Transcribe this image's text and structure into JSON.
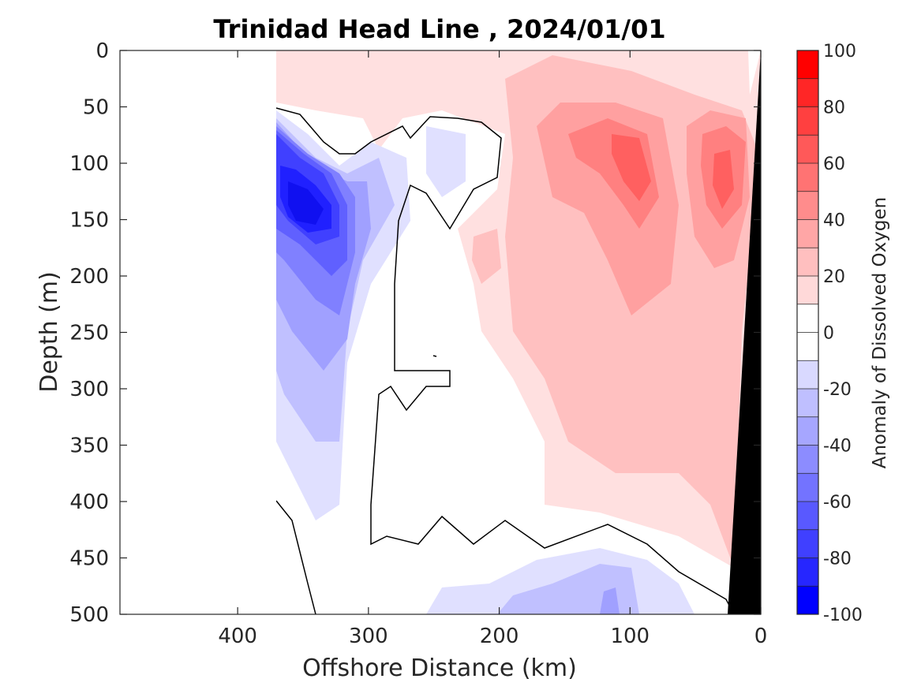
{
  "chart_data": {
    "type": "heatmap",
    "title": "Trinidad Head Line , 2024/01/01",
    "xlabel": "Offshore Distance (km)",
    "ylabel": "Depth (m)",
    "xlim": [
      490,
      0
    ],
    "ylim": [
      0,
      500
    ],
    "x_reversed": true,
    "y_reversed": true,
    "x_ticks": [
      400,
      300,
      200,
      100,
      0
    ],
    "y_ticks": [
      0,
      50,
      100,
      150,
      200,
      250,
      300,
      350,
      400,
      450,
      500
    ],
    "colorbar": {
      "label": "Anomaly of Dissolved Oxygen",
      "range": [
        -100,
        100
      ],
      "ticks": [
        -100,
        -80,
        -60,
        -40,
        -20,
        0,
        20,
        40,
        60,
        80,
        100
      ],
      "levels": [
        -100,
        -90,
        -80,
        -70,
        -60,
        -50,
        -40,
        -30,
        -20,
        -10,
        0,
        10,
        20,
        30,
        40,
        50,
        60,
        70,
        80,
        90,
        100
      ],
      "colormap": "blue-white-red"
    },
    "data_extent_km": [
      370,
      0
    ],
    "zero_contour": "black line",
    "bathymetry_fill": "#000000",
    "field_summary": [
      {
        "region": "offshore 320-370 km, 100-200 m",
        "anomaly": -90
      },
      {
        "region": "offshore 300-370 km, 200-350 m",
        "anomaly": -40
      },
      {
        "region": "nearshore 80-130 km, 100-150 m",
        "anomaly": 55
      },
      {
        "region": "nearshore 20-50 km, 100-150 m",
        "anomaly": 60
      },
      {
        "region": "nearshore 0-150 km, 150-400 m",
        "anomaly": 20
      },
      {
        "region": "80-150 km, 470-500 m",
        "anomaly": -30
      }
    ]
  }
}
